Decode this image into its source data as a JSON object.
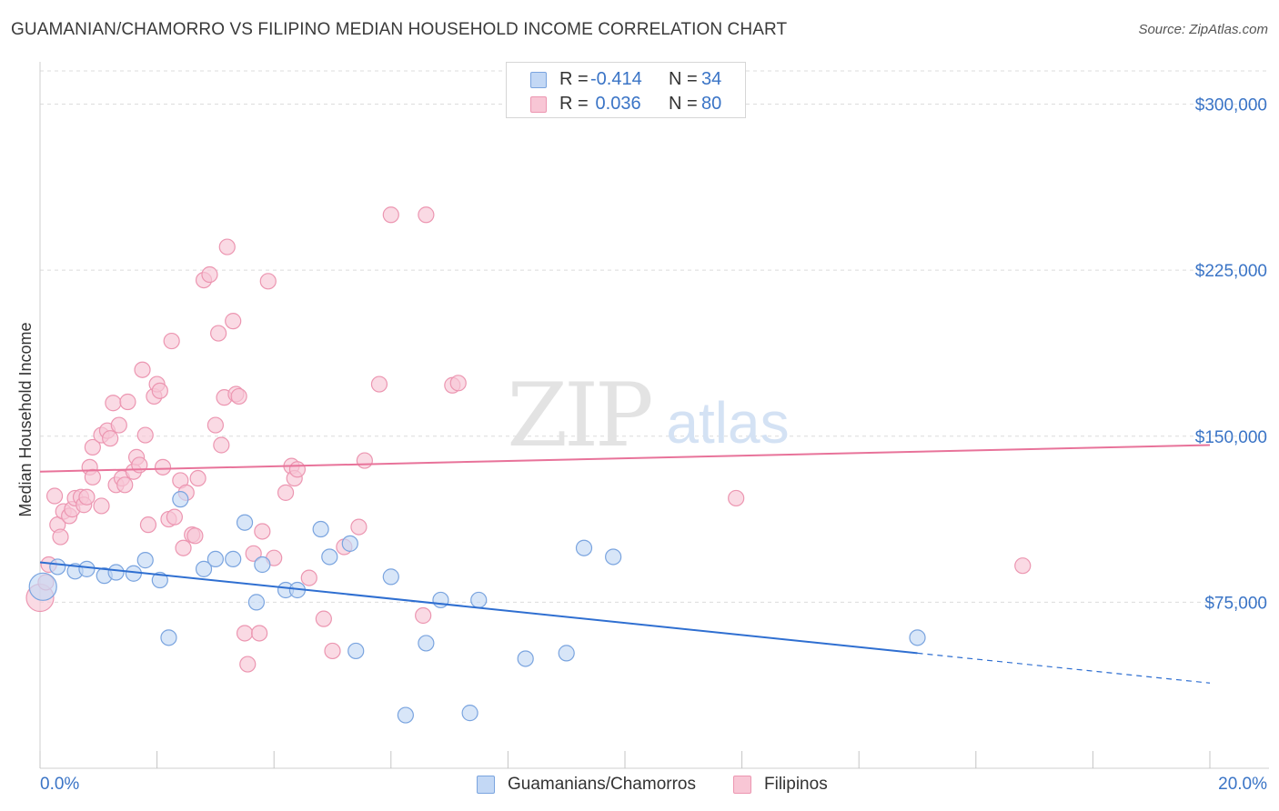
{
  "title": "GUAMANIAN/CHAMORRO VS FILIPINO MEDIAN HOUSEHOLD INCOME CORRELATION CHART",
  "source": "Source: ZipAtlas.com",
  "watermark": {
    "zip": "ZIP",
    "atlas": "atlas"
  },
  "legend": {
    "rows": [
      {
        "r_label": "R =",
        "r_value": "-0.414",
        "n_label": "N =",
        "n_value": "34"
      },
      {
        "r_label": "R =",
        "r_value": " 0.036",
        "n_label": "N =",
        "n_value": "80"
      }
    ]
  },
  "bottom_legend": [
    "Guamanians/Chamorros",
    "Filipinos"
  ],
  "colors": {
    "blue_fill": "#c3d8f5",
    "blue_stroke": "#7aa4df",
    "blue_line": "#2f6fd1",
    "pink_fill": "#f8c6d5",
    "pink_stroke": "#ec96b1",
    "pink_line": "#e8739a",
    "tick_text": "#3a74c6",
    "grid": "#dcdcdc"
  },
  "chart_data": {
    "type": "scatter",
    "title": "GUAMANIAN/CHAMORRO VS FILIPINO MEDIAN HOUSEHOLD INCOME CORRELATION CHART",
    "xlabel": "",
    "ylabel": "Median Household Income",
    "xlim": [
      0,
      20
    ],
    "ylim": [
      0,
      315000
    ],
    "x_tick_labels": [
      "0.0%",
      "20.0%"
    ],
    "y_ticks": [
      75000,
      150000,
      225000,
      300000
    ],
    "y_tick_labels": [
      "$75,000",
      "$150,000",
      "$225,000",
      "$300,000"
    ],
    "grid": true,
    "legend_position": "top-center",
    "series": [
      {
        "name": "Guamanians/Chamorros",
        "color": "#7aa4df",
        "r": -0.414,
        "n": 34,
        "trend": {
          "x0": 0,
          "y0": 93000,
          "x1": 15,
          "y1": 52000,
          "dashed_to_x": 20,
          "dashed_to_y": 38500
        },
        "points": [
          [
            0.05,
            82000
          ],
          [
            0.3,
            91000
          ],
          [
            0.6,
            89000
          ],
          [
            0.8,
            90000
          ],
          [
            1.1,
            87000
          ],
          [
            1.3,
            88500
          ],
          [
            1.6,
            88000
          ],
          [
            1.8,
            94000
          ],
          [
            2.05,
            85000
          ],
          [
            2.2,
            59000
          ],
          [
            2.8,
            90000
          ],
          [
            3.0,
            94500
          ],
          [
            3.3,
            94500
          ],
          [
            3.5,
            111000
          ],
          [
            3.7,
            75000
          ],
          [
            3.8,
            92000
          ],
          [
            4.2,
            80500
          ],
          [
            4.4,
            80500
          ],
          [
            4.8,
            108000
          ],
          [
            4.95,
            95500
          ],
          [
            5.3,
            101500
          ],
          [
            5.4,
            53000
          ],
          [
            6.0,
            86500
          ],
          [
            6.25,
            24000
          ],
          [
            6.6,
            56500
          ],
          [
            6.85,
            76000
          ],
          [
            7.35,
            25000
          ],
          [
            7.5,
            76000
          ],
          [
            8.3,
            49500
          ],
          [
            9.0,
            52000
          ],
          [
            9.3,
            99500
          ],
          [
            9.8,
            95500
          ],
          [
            15.0,
            59000
          ],
          [
            2.4,
            121500
          ]
        ]
      },
      {
        "name": "Filipinos",
        "color": "#ec96b1",
        "r": 0.036,
        "n": 80,
        "trend": {
          "x0": 0,
          "y0": 134000,
          "x1": 20,
          "y1": 146000
        },
        "points": [
          [
            0.0,
            77000
          ],
          [
            0.1,
            84000
          ],
          [
            0.15,
            92000
          ],
          [
            0.3,
            110000
          ],
          [
            0.35,
            104500
          ],
          [
            0.4,
            116000
          ],
          [
            0.5,
            114000
          ],
          [
            0.55,
            117000
          ],
          [
            0.6,
            122000
          ],
          [
            0.7,
            122500
          ],
          [
            0.75,
            119000
          ],
          [
            0.8,
            122500
          ],
          [
            0.85,
            136000
          ],
          [
            0.9,
            145000
          ],
          [
            0.9,
            131500
          ],
          [
            1.05,
            150500
          ],
          [
            1.05,
            118500
          ],
          [
            1.15,
            152500
          ],
          [
            1.2,
            149000
          ],
          [
            1.25,
            165000
          ],
          [
            1.3,
            128000
          ],
          [
            1.35,
            155000
          ],
          [
            1.4,
            131000
          ],
          [
            1.45,
            128000
          ],
          [
            1.5,
            165500
          ],
          [
            1.6,
            134000
          ],
          [
            1.65,
            140500
          ],
          [
            1.7,
            137000
          ],
          [
            1.75,
            180000
          ],
          [
            1.8,
            150500
          ],
          [
            1.85,
            110000
          ],
          [
            1.95,
            168000
          ],
          [
            2.0,
            173500
          ],
          [
            2.05,
            170500
          ],
          [
            2.1,
            136000
          ],
          [
            2.2,
            112500
          ],
          [
            2.25,
            193000
          ],
          [
            2.3,
            113500
          ],
          [
            2.4,
            130000
          ],
          [
            2.45,
            99500
          ],
          [
            2.5,
            124500
          ],
          [
            2.6,
            105500
          ],
          [
            2.65,
            105000
          ],
          [
            2.7,
            131000
          ],
          [
            2.8,
            220500
          ],
          [
            2.9,
            223000
          ],
          [
            3.0,
            155000
          ],
          [
            3.05,
            196500
          ],
          [
            3.1,
            146000
          ],
          [
            3.15,
            167500
          ],
          [
            3.2,
            235500
          ],
          [
            3.3,
            202000
          ],
          [
            3.35,
            169000
          ],
          [
            3.4,
            168000
          ],
          [
            3.5,
            61000
          ],
          [
            3.55,
            47000
          ],
          [
            3.65,
            97000
          ],
          [
            3.75,
            61000
          ],
          [
            3.8,
            107000
          ],
          [
            3.9,
            220000
          ],
          [
            4.0,
            95000
          ],
          [
            4.2,
            124500
          ],
          [
            4.3,
            136500
          ],
          [
            4.35,
            131000
          ],
          [
            4.4,
            135000
          ],
          [
            4.6,
            86000
          ],
          [
            4.85,
            67500
          ],
          [
            5.0,
            53000
          ],
          [
            5.2,
            100000
          ],
          [
            5.45,
            109000
          ],
          [
            5.55,
            139000
          ],
          [
            5.8,
            173500
          ],
          [
            6.0,
            250000
          ],
          [
            6.55,
            69000
          ],
          [
            6.6,
            250000
          ],
          [
            7.05,
            173000
          ],
          [
            7.15,
            174000
          ],
          [
            11.9,
            122000
          ],
          [
            16.8,
            91500
          ],
          [
            0.25,
            123000
          ]
        ]
      }
    ]
  }
}
